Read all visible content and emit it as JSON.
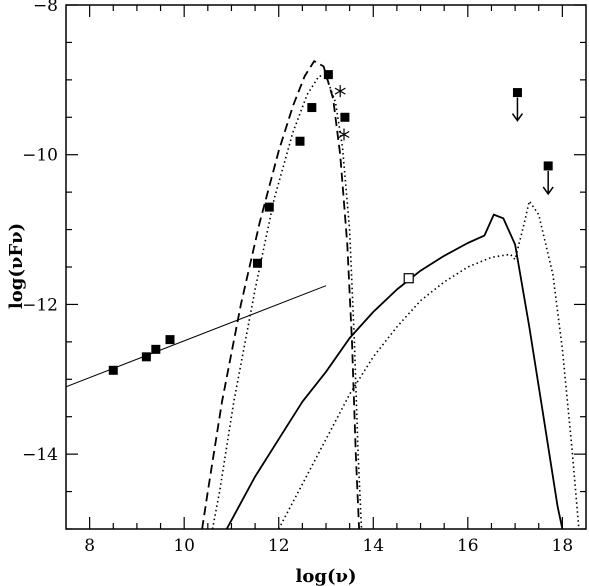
{
  "chart_data": {
    "type": "scatter",
    "xlabel": "log(ν)",
    "ylabel": "log(νFν)",
    "xlim": [
      7.5,
      18.5
    ],
    "ylim": [
      -15,
      -8
    ],
    "xticks": [
      8,
      10,
      12,
      14,
      16,
      18
    ],
    "xtick_labels": [
      "8",
      "10",
      "12",
      "14",
      "16",
      "18"
    ],
    "yticks": [
      -14,
      -12,
      -10,
      -8
    ],
    "ytick_labels": [
      "−14",
      "−12",
      "−10",
      "−8"
    ],
    "grid": false,
    "legend": "none",
    "series": [
      {
        "style": "filled-square",
        "points": [
          [
            8.5,
            -12.88
          ],
          [
            9.2,
            -12.7
          ],
          [
            9.4,
            -12.6
          ],
          [
            9.7,
            -12.47
          ],
          [
            11.55,
            -11.45
          ],
          [
            11.8,
            -10.7
          ],
          [
            12.45,
            -9.82
          ],
          [
            12.7,
            -9.37
          ],
          [
            13.05,
            -8.93
          ],
          [
            13.4,
            -9.5
          ]
        ]
      },
      {
        "style": "filled-square-upper-limit",
        "points": [
          [
            17.05,
            -9.17
          ],
          [
            17.7,
            -10.15
          ]
        ]
      },
      {
        "style": "open-square",
        "points": [
          [
            14.75,
            -11.65
          ]
        ]
      },
      {
        "style": "star",
        "points": [
          [
            13.3,
            -9.15
          ],
          [
            13.38,
            -9.73
          ]
        ]
      },
      {
        "style": "thin-solid-line",
        "points": [
          [
            7.5,
            -13.1
          ],
          [
            13.0,
            -11.75
          ]
        ]
      },
      {
        "style": "dashed-line",
        "points": [
          [
            10.38,
            -15.0
          ],
          [
            10.5,
            -14.5
          ],
          [
            10.8,
            -13.3
          ],
          [
            11.2,
            -12.0
          ],
          [
            11.6,
            -10.9
          ],
          [
            12.0,
            -9.95
          ],
          [
            12.3,
            -9.35
          ],
          [
            12.55,
            -8.95
          ],
          [
            12.75,
            -8.75
          ],
          [
            12.95,
            -8.82
          ],
          [
            13.15,
            -9.25
          ],
          [
            13.3,
            -10.0
          ],
          [
            13.45,
            -11.2
          ],
          [
            13.55,
            -12.5
          ],
          [
            13.63,
            -14.0
          ],
          [
            13.7,
            -15.0
          ]
        ]
      },
      {
        "style": "dotted-line",
        "points": [
          [
            10.6,
            -15.0
          ],
          [
            10.75,
            -14.5
          ],
          [
            11.05,
            -13.3
          ],
          [
            11.5,
            -11.8
          ],
          [
            11.9,
            -10.6
          ],
          [
            12.3,
            -9.7
          ],
          [
            12.6,
            -9.2
          ],
          [
            12.85,
            -8.95
          ],
          [
            13.0,
            -8.95
          ],
          [
            13.2,
            -9.3
          ],
          [
            13.35,
            -9.9
          ],
          [
            13.5,
            -11.0
          ],
          [
            13.6,
            -12.5
          ],
          [
            13.68,
            -14.0
          ],
          [
            13.75,
            -15.0
          ]
        ]
      },
      {
        "style": "solid-line",
        "points": [
          [
            10.9,
            -15.0
          ],
          [
            11.5,
            -14.3
          ],
          [
            12.0,
            -13.8
          ],
          [
            12.5,
            -13.3
          ],
          [
            13.0,
            -12.9
          ],
          [
            13.5,
            -12.45
          ],
          [
            14.0,
            -12.1
          ],
          [
            14.5,
            -11.8
          ],
          [
            15.0,
            -11.55
          ],
          [
            15.5,
            -11.35
          ],
          [
            16.0,
            -11.18
          ],
          [
            16.35,
            -11.08
          ],
          [
            16.55,
            -10.8
          ],
          [
            16.75,
            -10.85
          ],
          [
            17.0,
            -11.2
          ],
          [
            17.3,
            -12.3
          ],
          [
            17.6,
            -13.5
          ],
          [
            17.9,
            -14.7
          ],
          [
            18.0,
            -15.0
          ]
        ]
      },
      {
        "style": "dotted-line",
        "points": [
          [
            12.0,
            -15.0
          ],
          [
            12.5,
            -14.4
          ],
          [
            13.0,
            -13.8
          ],
          [
            13.5,
            -13.2
          ],
          [
            14.0,
            -12.7
          ],
          [
            14.5,
            -12.3
          ],
          [
            15.0,
            -11.95
          ],
          [
            15.5,
            -11.7
          ],
          [
            16.0,
            -11.5
          ],
          [
            16.5,
            -11.37
          ],
          [
            16.9,
            -11.33
          ],
          [
            17.0,
            -11.4
          ],
          [
            17.2,
            -10.9
          ],
          [
            17.3,
            -10.62
          ],
          [
            17.5,
            -10.8
          ],
          [
            17.8,
            -11.6
          ],
          [
            18.0,
            -12.6
          ],
          [
            18.2,
            -13.9
          ],
          [
            18.35,
            -15.0
          ]
        ]
      }
    ]
  }
}
